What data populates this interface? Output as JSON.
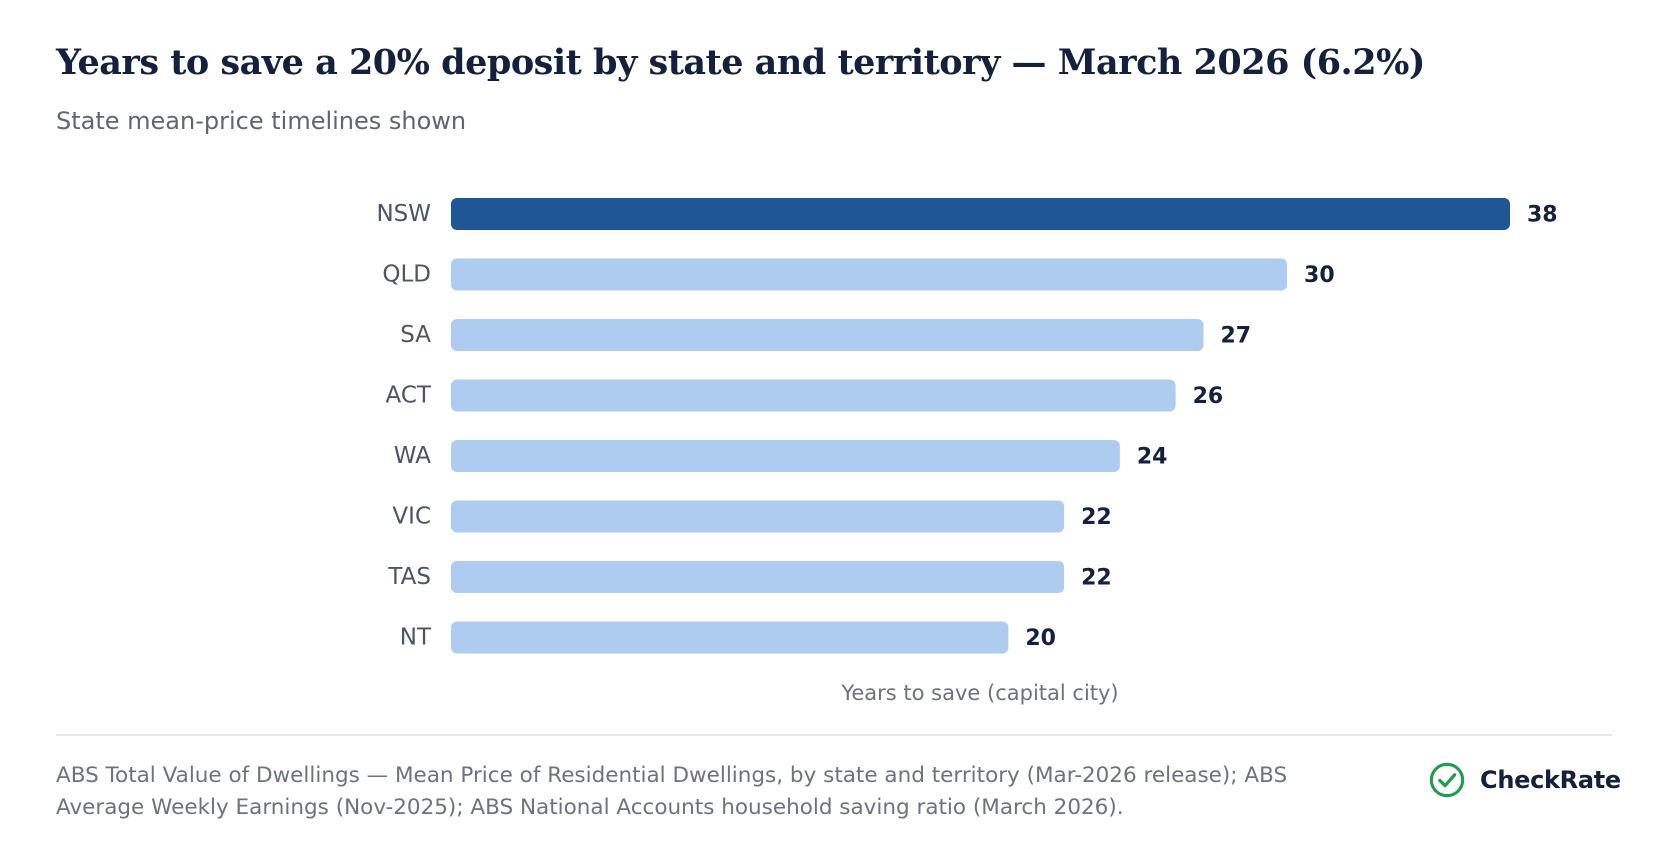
{
  "header": {
    "title": "Years to save a 20% deposit by state and territory — March 2026 (6.2%)",
    "subtitle": "State mean-price timelines shown"
  },
  "chart_data": {
    "type": "bar",
    "orientation": "horizontal",
    "categories": [
      "NSW",
      "QLD",
      "SA",
      "ACT",
      "WA",
      "VIC",
      "TAS",
      "NT"
    ],
    "values": [
      38,
      30,
      27,
      26,
      24,
      22,
      22,
      20
    ],
    "highlight": "NSW",
    "xlabel": "Years to save (capital city)",
    "ylabel": "",
    "grid": false,
    "colors": {
      "highlight": "#1f5696",
      "default": "#aecbf0",
      "category_label": "#4b5563",
      "value_label": "#14213d",
      "axis_label": "#6b7280"
    }
  },
  "footer": {
    "source": "ABS Total Value of Dwellings — Mean Price of Residential Dwellings, by state and territory (Mar-2026 release); ABS Average Weekly Earnings (Nov-2025); ABS National Accounts household saving ratio (March 2026).",
    "brand_name": "CheckRate",
    "brand_icon": "check-circle-icon",
    "brand_color": "#1e9e4a"
  }
}
